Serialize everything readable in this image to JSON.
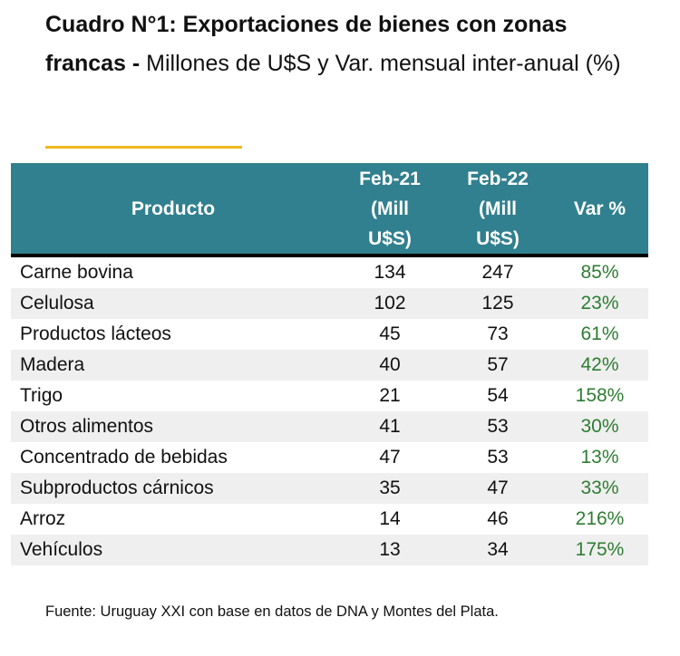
{
  "title": {
    "bold": "Cuadro N°1: Exportaciones de bienes con zonas francas -",
    "rest": " Millones de U$S y Var. mensual inter-anual (%)"
  },
  "table": {
    "headers": [
      "Producto",
      "Feb-21 (Mill U$S)",
      "Feb-22 (Mill U$S)",
      "Var %"
    ],
    "rows": [
      [
        "Carne bovina",
        "134",
        "247",
        "85%"
      ],
      [
        "Celulosa",
        "102",
        "125",
        "23%"
      ],
      [
        "Productos lácteos",
        "45",
        "73",
        "61%"
      ],
      [
        "Madera",
        "40",
        "57",
        "42%"
      ],
      [
        "Trigo",
        "21",
        "54",
        "158%"
      ],
      [
        "Otros alimentos",
        "41",
        "53",
        "30%"
      ],
      [
        "Concentrado de bebidas",
        "47",
        "53",
        "13%"
      ],
      [
        "Subproductos cárnicos",
        "35",
        "47",
        "33%"
      ],
      [
        "Arroz",
        "14",
        "46",
        "216%"
      ],
      [
        "Vehículos",
        "13",
        "34",
        "175%"
      ]
    ]
  },
  "colors": {
    "header": "#31808f",
    "accent": "#f0b81c",
    "positive": "#2e7d32"
  },
  "footer": "Fuente: Uruguay XXI con base en datos de DNA y Montes del Plata."
}
